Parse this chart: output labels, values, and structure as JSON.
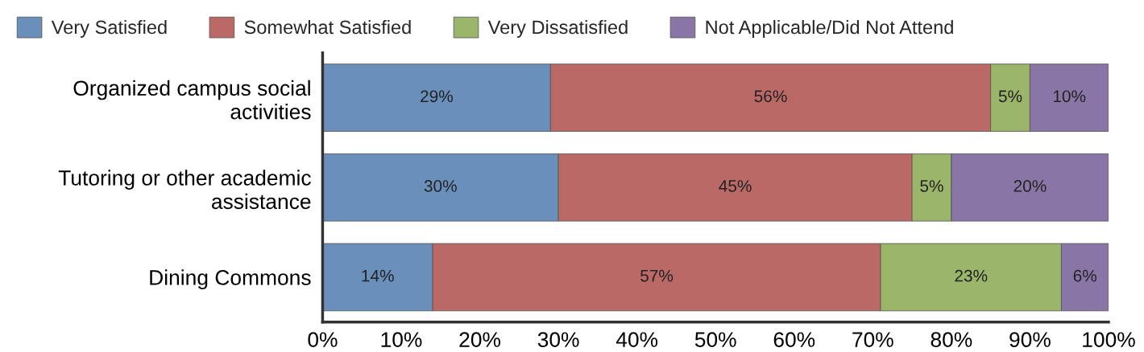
{
  "chart_data": {
    "type": "bar",
    "orientation": "horizontal",
    "stacked": true,
    "categories": [
      "Organized campus social\nactivities",
      "Tutoring or other academic\nassistance",
      "Dining Commons"
    ],
    "series": [
      {
        "name": "Very Satisfied",
        "color": "#6a8fba",
        "values": [
          29,
          30,
          14
        ],
        "value_labels": [
          "29%",
          "30%",
          "14%"
        ]
      },
      {
        "name": "Somewhat Satisfied",
        "color": "#bb6966",
        "values": [
          56,
          45,
          57
        ],
        "value_labels": [
          "56%",
          "45%",
          "57%"
        ]
      },
      {
        "name": "Very Dissatisfied",
        "color": "#9bb56a",
        "values": [
          5,
          5,
          23
        ],
        "value_labels": [
          "5%",
          "5%",
          "23%"
        ]
      },
      {
        "name": "Not Applicable/Did Not Attend",
        "color": "#8a76a6",
        "values": [
          10,
          20,
          6
        ],
        "value_labels": [
          "10%",
          "20%",
          "6%"
        ]
      }
    ],
    "xlim": [
      0,
      100
    ],
    "xticks": [
      {
        "value": 0,
        "label": "0%"
      },
      {
        "value": 10,
        "label": "10%"
      },
      {
        "value": 20,
        "label": "20%"
      },
      {
        "value": 30,
        "label": "30%"
      },
      {
        "value": 40,
        "label": "40%"
      },
      {
        "value": 50,
        "label": "50%"
      },
      {
        "value": 60,
        "label": "60%"
      },
      {
        "value": 70,
        "label": "70%"
      },
      {
        "value": 80,
        "label": "80%"
      },
      {
        "value": 90,
        "label": "90%"
      },
      {
        "value": 100,
        "label": "100%"
      }
    ],
    "grid": false,
    "legend": "top"
  }
}
